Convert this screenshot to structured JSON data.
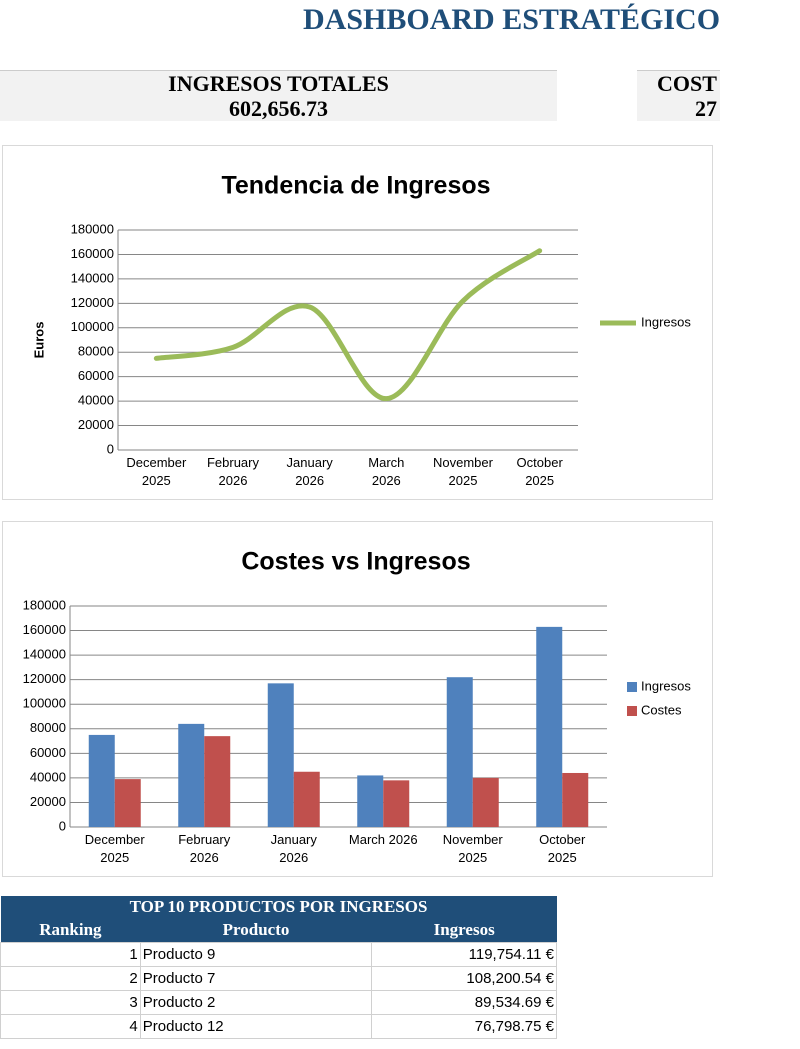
{
  "header": {
    "title": "DASHBOARD ESTRATÉGICO"
  },
  "kpis": [
    {
      "label": "INGRESOS TOTALES",
      "value": "602,656.73"
    },
    {
      "label": "COST",
      "value": "27"
    }
  ],
  "chart_data": [
    {
      "type": "line",
      "title": "Tendencia de Ingresos",
      "y_label": "Euros",
      "categories": [
        "December 2025",
        "February 2026",
        "January 2026",
        "March 2026",
        "November 2025",
        "October 2025"
      ],
      "series": [
        {
          "name": "Ingresos",
          "color": "#9bbb59",
          "values": [
            75000,
            84000,
            117000,
            42000,
            122000,
            163000
          ]
        }
      ],
      "ylim": [
        0,
        180000
      ],
      "yticks": [
        0,
        20000,
        40000,
        60000,
        80000,
        100000,
        120000,
        140000,
        160000,
        180000
      ],
      "grid": true,
      "smooth": true,
      "legend": "right"
    },
    {
      "type": "bar",
      "title": "Costes vs Ingresos",
      "categories": [
        "December 2025",
        "February 2026",
        "January 2026",
        "March 2026",
        "November 2025",
        "October 2025"
      ],
      "series": [
        {
          "name": "Ingresos",
          "color": "#4f81bd",
          "values": [
            75000,
            84000,
            117000,
            42000,
            122000,
            163000
          ]
        },
        {
          "name": "Costes",
          "color": "#c0504d",
          "values": [
            39000,
            74000,
            45000,
            38000,
            40000,
            44000
          ]
        }
      ],
      "ylim": [
        0,
        180000
      ],
      "yticks": [
        0,
        20000,
        40000,
        60000,
        80000,
        100000,
        120000,
        140000,
        160000,
        180000
      ],
      "grid": true,
      "legend": "right"
    }
  ],
  "table": {
    "title": "TOP 10 PRODUCTOS POR INGRESOS",
    "columns": [
      "Ranking",
      "Producto",
      "Ingresos"
    ],
    "rows": [
      [
        "1",
        "Producto 9",
        "119,754.11 €"
      ],
      [
        "2",
        "Producto 7",
        "108,200.54 €"
      ],
      [
        "3",
        "Producto 2",
        "89,534.69 €"
      ],
      [
        "4",
        "Producto 12",
        "76,798.75 €"
      ]
    ]
  }
}
